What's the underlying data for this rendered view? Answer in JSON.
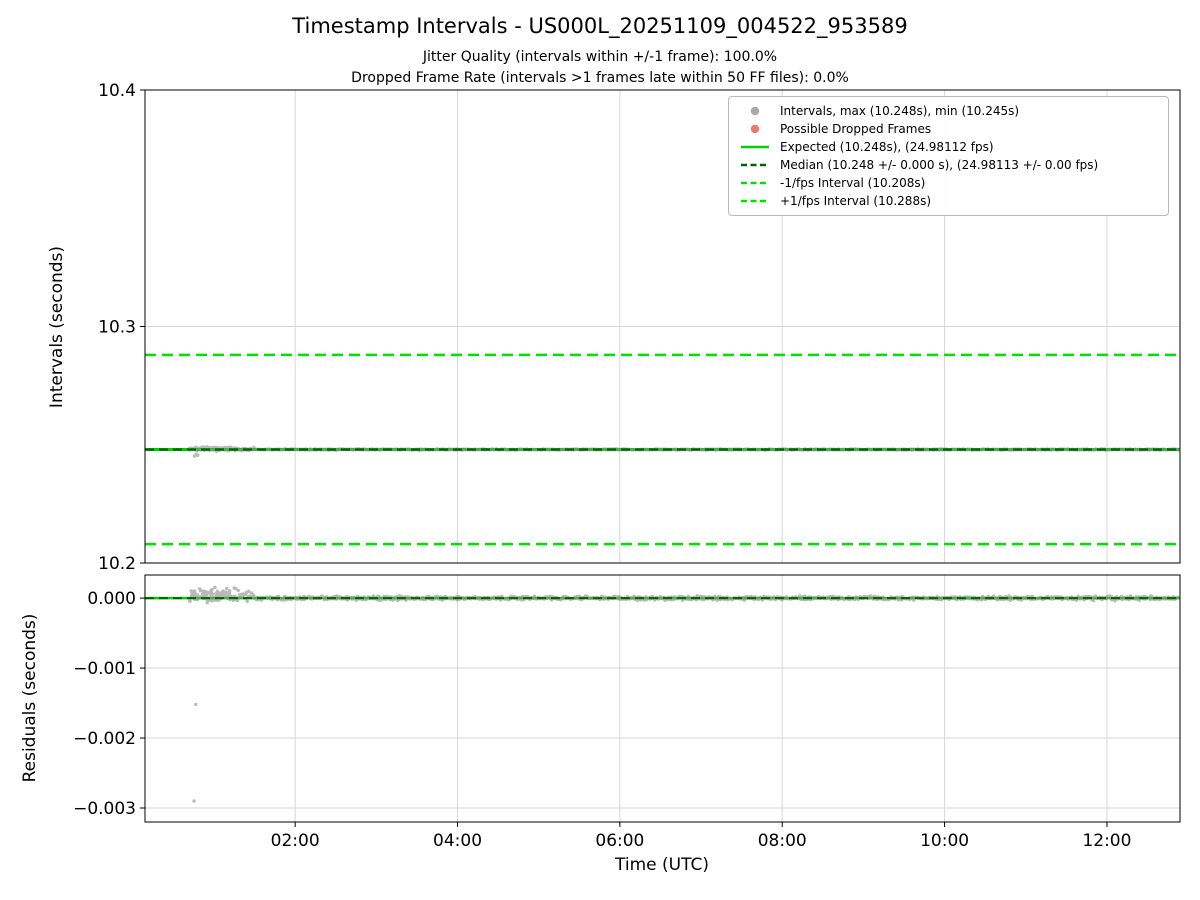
{
  "title": "Timestamp Intervals - US000L_20251109_004522_953589",
  "subtitle_jitter": "Jitter Quality (intervals within +/-1 frame): 100.0%",
  "subtitle_dropped": "Dropped Frame Rate (intervals >1 frames late within 50 FF files): 0.0%",
  "colors": {
    "expected_line": "#00d000",
    "fps_interval_line": "#00e300",
    "median_line": "#006400",
    "scatter_gray": "#8c8c8c",
    "dropped_red": "#ee6666",
    "grid": "#d6d6d6"
  },
  "legend": {
    "position": "upper right",
    "entries": [
      {
        "label": "Intervals, max (10.248s), min (10.245s)",
        "marker": "dot",
        "color": "#9e9e9e",
        "dash": false
      },
      {
        "label": "Possible Dropped Frames",
        "marker": "dot",
        "color": "#ee6666",
        "dash": false
      },
      {
        "label": "Expected (10.248s), (24.98112 fps)",
        "marker": "line",
        "color": "#00d000",
        "dash": false
      },
      {
        "label": "Median (10.248 +/- 0.000 s), (24.98113 +/- 0.00 fps)",
        "marker": "line",
        "color": "#006400",
        "dash": true
      },
      {
        "label": "-1/fps Interval (10.208s)",
        "marker": "line",
        "color": "#00e300",
        "dash": true
      },
      {
        "label": "+1/fps Interval (10.288s)",
        "marker": "line",
        "color": "#00e300",
        "dash": true
      }
    ]
  },
  "chart_data": [
    {
      "type": "scatter",
      "panel": "intervals",
      "title": "Timestamp Intervals - US000L_20251109_004522_953589",
      "ylabel": "Intervals (seconds)",
      "xlabel": "",
      "ylim": [
        10.2,
        10.4
      ],
      "yticks": [
        10.4,
        10.3,
        10.2
      ],
      "ytick_labels": [
        "10.4",
        "10.3",
        "10.2"
      ],
      "xlim_hours": [
        0.15,
        12.9
      ],
      "xticks_hours": [
        2,
        4,
        6,
        8,
        10,
        12
      ],
      "xtick_labels": [],
      "grid": true,
      "legend_position": "upper right",
      "stats": {
        "max": "10.248s",
        "min": "10.245s",
        "expected": "10.248s",
        "expected_fps": "24.98112 fps",
        "median": "10.248 +/- 0.000 s",
        "median_fps": "24.98113 +/- 0.00 fps",
        "minus_1fps_interval": "10.208s",
        "plus_1fps_interval": "10.288s",
        "jitter_quality_pct": 100.0,
        "dropped_frame_rate_pct": 0.0
      },
      "hlines": [
        {
          "name": "expected-line",
          "value": 10.248,
          "color": "#00d000",
          "dash": false,
          "width": 3.0,
          "z": 1
        },
        {
          "name": "minus-1fps-line",
          "value": 10.208,
          "color": "#00e300",
          "dash": true,
          "width": 2.5,
          "z": 1
        },
        {
          "name": "plus-1fps-line",
          "value": 10.288,
          "color": "#00e300",
          "dash": true,
          "width": 2.5,
          "z": 1
        },
        {
          "name": "median-line",
          "value": 10.248,
          "color": "#006400",
          "dash": true,
          "width": 2.2,
          "z": 3
        }
      ],
      "scatter": {
        "seed": 7,
        "n": 1250,
        "start_hour": 0.7,
        "end_hour": 12.88,
        "center": 10.248,
        "jitter": 0.00035,
        "early_until": 1.5,
        "early_jitter": 0.0011,
        "early_offset": 0.0002,
        "early_extra": 80,
        "color": "#8c8c8c",
        "outliers": [
          [
            0.76,
            10.2452
          ],
          [
            0.78,
            10.246
          ],
          [
            0.8,
            10.2455
          ]
        ]
      }
    },
    {
      "type": "scatter",
      "panel": "residuals",
      "ylabel": "Residuals (seconds)",
      "xlabel": "Time (UTC)",
      "ylim": [
        -0.0032,
        0.00033
      ],
      "yticks": [
        0,
        -0.001,
        -0.002,
        -0.003
      ],
      "ytick_labels": [
        "0.000",
        "−0.001",
        "−0.002",
        "−0.003"
      ],
      "xlim_hours": [
        0.15,
        12.9
      ],
      "xticks_hours": [
        2,
        4,
        6,
        8,
        10,
        12
      ],
      "xtick_labels": [
        "02:00",
        "04:00",
        "06:00",
        "08:00",
        "10:00",
        "12:00"
      ],
      "grid": true,
      "hlines": [
        {
          "name": "expected-line",
          "value": 0,
          "color": "#00d000",
          "dash": false,
          "width": 2.5,
          "z": 1
        },
        {
          "name": "median-line",
          "value": 0,
          "color": "#006400",
          "dash": true,
          "width": 2.0,
          "z": 3
        }
      ],
      "scatter": {
        "seed": 13,
        "n": 1250,
        "start_hour": 0.7,
        "end_hour": 12.88,
        "center": 0,
        "jitter": 4e-05,
        "early_until": 1.5,
        "early_jitter": 0.00012,
        "early_offset": 4e-05,
        "early_extra": 80,
        "color": "#8c8c8c",
        "outliers": [
          [
            0.755,
            -0.0029
          ],
          [
            0.775,
            -0.00152
          ]
        ]
      }
    }
  ]
}
